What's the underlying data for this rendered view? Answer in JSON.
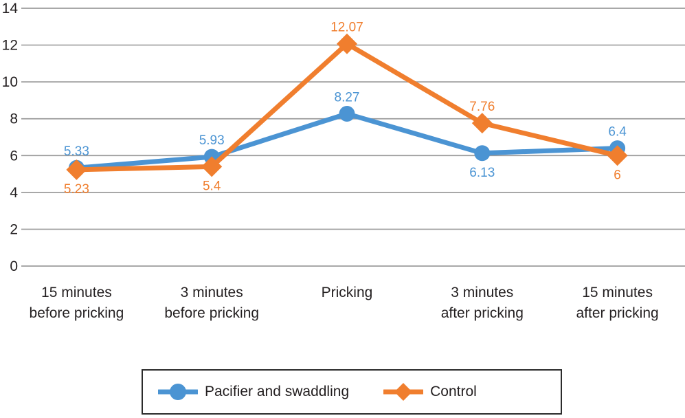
{
  "chart_data": {
    "type": "line",
    "categories": [
      "15 minutes\nbefore pricking",
      "3 minutes\nbefore pricking",
      "Pricking",
      "3 minutes\nafter pricking",
      "15 minutes\nafter pricking"
    ],
    "series": [
      {
        "name": "Pacifier and swaddling",
        "color": "#4b94d3",
        "marker": "circle",
        "values": [
          5.33,
          5.93,
          8.27,
          6.13,
          6.4
        ],
        "data_labels": [
          "5.33",
          "5.93",
          "8.27",
          "6.13",
          "6.4"
        ],
        "label_positions": [
          "above",
          "above",
          "above",
          "below",
          "above"
        ]
      },
      {
        "name": "Control",
        "color": "#f07e2e",
        "marker": "diamond",
        "values": [
          5.23,
          5.4,
          12.07,
          7.76,
          6
        ],
        "data_labels": [
          "5.23",
          "5.4",
          "12.07",
          "7.76",
          "6"
        ],
        "label_positions": [
          "below",
          "below",
          "above",
          "above",
          "below"
        ]
      }
    ],
    "title": "",
    "xlabel": "",
    "ylabel": "",
    "ylim": [
      0,
      14
    ],
    "yticks": [
      0,
      2,
      4,
      6,
      8,
      10,
      12,
      14
    ],
    "grid": "horizontal",
    "gridline_color": "#9b9b9b",
    "axis_text_color": "#231f20",
    "legend_position": "bottom",
    "legend_border_color": "#2b2b2b"
  }
}
